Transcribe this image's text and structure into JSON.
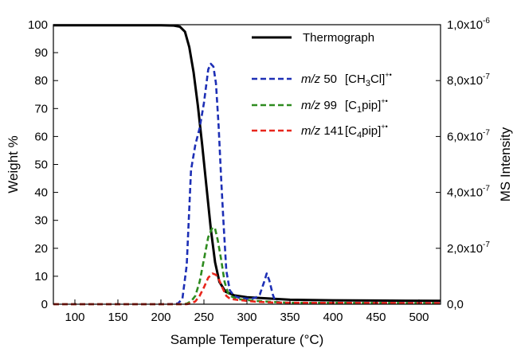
{
  "chart_data": {
    "type": "line",
    "xlabel": "Sample Temperature (°C)",
    "ylabel": "Weight %",
    "y2label": "MS Intensity",
    "xlim": [
      75,
      525
    ],
    "ylim": [
      0,
      100
    ],
    "y2lim": [
      0,
      1e-06
    ],
    "x_ticks": [
      100,
      150,
      200,
      250,
      300,
      350,
      400,
      450,
      500
    ],
    "y_ticks": [
      0,
      10,
      20,
      30,
      40,
      50,
      60,
      70,
      80,
      90,
      100
    ],
    "y2_ticks": [
      0,
      2e-07,
      4e-07,
      6e-07,
      8e-07,
      1e-06
    ],
    "y2_tick_labels": [
      {
        "mantissa": "0,0",
        "exp": ""
      },
      {
        "mantissa": "2,0x10",
        "exp": "-7"
      },
      {
        "mantissa": "4,0x10",
        "exp": "-7"
      },
      {
        "mantissa": "6,0x10",
        "exp": "-7"
      },
      {
        "mantissa": "8,0x10",
        "exp": "-7"
      },
      {
        "mantissa": "1,0x10",
        "exp": "-6"
      }
    ],
    "grid": false,
    "legend_position": "top-right",
    "series": [
      {
        "name": "Thermograph",
        "axis": "left",
        "color": "#000000",
        "style": "solid",
        "x": [
          75,
          150,
          200,
          215,
          222,
          228,
          233,
          238,
          243,
          248,
          253,
          258,
          263,
          268,
          275,
          285,
          300,
          350,
          400,
          450,
          525
        ],
        "y": [
          99.8,
          99.8,
          99.8,
          99.7,
          99.3,
          97.5,
          92,
          83,
          71,
          57,
          42,
          27,
          15,
          8,
          4.5,
          3.2,
          2.5,
          1.6,
          1.4,
          1.3,
          1.2
        ]
      },
      {
        "name": "m/z 50 [CH3Cl]+•",
        "legend": {
          "mz": "m/z",
          "value": "50",
          "species": "[CH",
          "sub": "3",
          "rest": "Cl]",
          "sup": "+•"
        },
        "axis": "right",
        "color": "#1d2fb5",
        "style": "dashed",
        "x": [
          75,
          200,
          215,
          220,
          225,
          230,
          235,
          240,
          245,
          250,
          255,
          258,
          261,
          264,
          267,
          270,
          273,
          276,
          280,
          285,
          290,
          295,
          300,
          305,
          310,
          315,
          320,
          323,
          326,
          330,
          333,
          340,
          350,
          400,
          525
        ],
        "y": [
          0,
          0,
          1e-09,
          3e-09,
          2e-08,
          1.4e-07,
          4.8e-07,
          5.7e-07,
          6.3e-07,
          7.2e-07,
          8.4e-07,
          8.6e-07,
          8.5e-07,
          7.9e-07,
          6.4e-07,
          4.5e-07,
          2.8e-07,
          1.2e-07,
          5e-08,
          3e-08,
          2.4e-08,
          2.2e-08,
          2e-08,
          2e-08,
          2.3e-08,
          3.5e-08,
          8e-08,
          1.1e-07,
          8.5e-08,
          3.5e-08,
          1e-08,
          5e-09,
          5e-09,
          5e-09,
          5e-09
        ]
      },
      {
        "name": "m/z 99 [C1pip]+•",
        "legend": {
          "mz": "m/z",
          "value": "99",
          "species": "[C",
          "sub": "1",
          "rest": "pip]",
          "sup": "+•"
        },
        "axis": "right",
        "color": "#2e8b1f",
        "style": "dashed",
        "x": [
          75,
          225,
          230,
          235,
          240,
          245,
          250,
          255,
          260,
          263,
          266,
          270,
          274,
          278,
          282,
          286,
          290,
          300,
          310,
          330,
          350,
          525
        ],
        "y": [
          0,
          0,
          2e-09,
          1e-08,
          3e-08,
          8e-08,
          1.6e-07,
          2.4e-07,
          2.75e-07,
          2.7e-07,
          2.3e-07,
          1.6e-07,
          8e-08,
          4e-08,
          2.8e-08,
          2.2e-08,
          1.8e-08,
          1.5e-08,
          1.2e-08,
          8e-09,
          5e-09,
          4e-09
        ]
      },
      {
        "name": "m/z 141 [C4pip]+•",
        "legend": {
          "mz": "m/z",
          "value": "141",
          "species": "[C",
          "sub": "4",
          "rest": "pip]",
          "sup": "+•"
        },
        "axis": "right",
        "color": "#e8261c",
        "style": "dashed",
        "x": [
          75,
          230,
          235,
          240,
          245,
          250,
          255,
          260,
          264,
          268,
          272,
          276,
          280,
          285,
          290,
          300,
          310,
          330,
          350,
          525
        ],
        "y": [
          0,
          0,
          3e-09,
          1e-08,
          3e-08,
          6e-08,
          9.5e-08,
          1.1e-07,
          1.05e-07,
          8.5e-08,
          5.5e-08,
          3e-08,
          2e-08,
          1.7e-08,
          1.5e-08,
          1.2e-08,
          9e-09,
          6e-09,
          5e-09,
          4e-09
        ]
      }
    ]
  }
}
